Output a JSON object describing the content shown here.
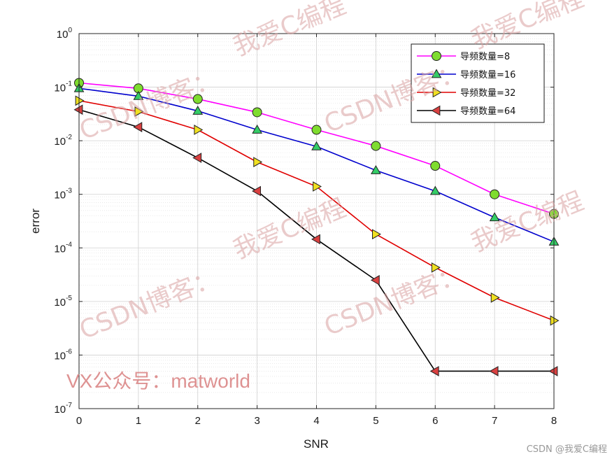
{
  "chart_data": {
    "type": "line",
    "xlabel": "SNR",
    "ylabel": "error",
    "x": [
      0,
      1,
      2,
      3,
      4,
      5,
      6,
      7,
      8
    ],
    "xlim": [
      0,
      8
    ],
    "ylim": [
      1e-07,
      1
    ],
    "yscale": "log",
    "x_ticks": [
      "0",
      "1",
      "2",
      "3",
      "4",
      "5",
      "6",
      "7",
      "8"
    ],
    "y_ticks": [
      {
        "base": "10",
        "exp": "0",
        "value": 1
      },
      {
        "base": "10",
        "exp": "-1",
        "value": 0.1
      },
      {
        "base": "10",
        "exp": "-2",
        "value": 0.01
      },
      {
        "base": "10",
        "exp": "-3",
        "value": 0.001
      },
      {
        "base": "10",
        "exp": "-4",
        "value": 0.0001
      },
      {
        "base": "10",
        "exp": "-5",
        "value": 1e-05
      },
      {
        "base": "10",
        "exp": "-6",
        "value": 1e-06
      },
      {
        "base": "10",
        "exp": "-7",
        "value": 1e-07
      }
    ],
    "grid": true,
    "minor_grid": true,
    "legend_position": "top-right",
    "series": [
      {
        "name": "导频数量=8",
        "color": "#ff00ff",
        "marker": "circle",
        "marker_color": "#7fdc2f",
        "values": [
          0.12,
          0.095,
          0.06,
          0.034,
          0.016,
          0.008,
          0.0034,
          0.001,
          0.00043
        ]
      },
      {
        "name": "导频数量=16",
        "color": "#0000cd",
        "marker": "triangle-up",
        "marker_color": "#33cc66",
        "values": [
          0.095,
          0.068,
          0.036,
          0.016,
          0.0078,
          0.0028,
          0.00115,
          0.00037,
          0.00013
        ]
      },
      {
        "name": "导频数量=32",
        "color": "#e00000",
        "marker": "triangle-right",
        "marker_color": "#f0e020",
        "values": [
          0.056,
          0.035,
          0.016,
          0.004,
          0.0014,
          0.00018,
          4.3e-05,
          1.18e-05,
          4.4e-06
        ]
      },
      {
        "name": "导频数量=64",
        "color": "#000000",
        "marker": "triangle-left",
        "marker_color": "#d94040",
        "values": [
          0.038,
          0.018,
          0.0048,
          0.00115,
          0.000145,
          2.5e-05,
          5e-07,
          5e-07,
          5e-07
        ]
      }
    ]
  },
  "watermarks": {
    "csdn_blog": "CSDN博客：",
    "author": "我爱C编程",
    "wechat": "VX公众号：matworld",
    "credit": "CSDN @我爱C编程"
  }
}
